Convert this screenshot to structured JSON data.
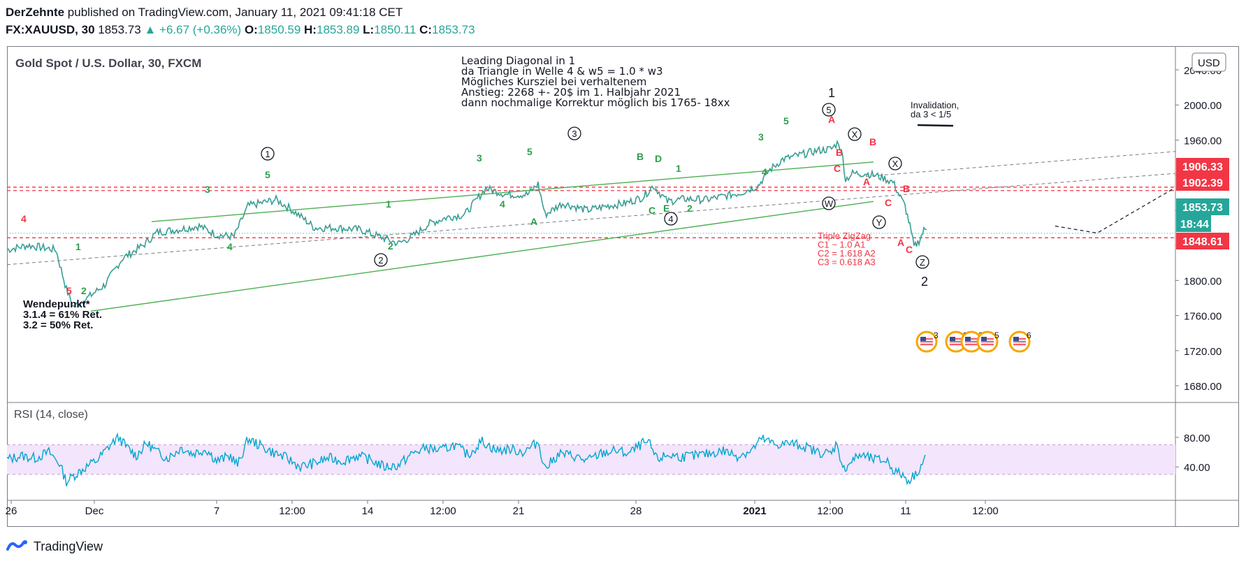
{
  "header": {
    "author": "DerZehnte",
    "published": " published on TradingView.com, January 11, 2021 09:41:18 CET",
    "symbol": "FX:XAUUSD, 30",
    "last": "1853.73",
    "change": "+6.67 (+0.36%)",
    "o_label": "O:",
    "o": "1850.59",
    "h_label": "H:",
    "h": "1853.89",
    "l_label": "L:",
    "l": "1850.11",
    "c_label": "C:",
    "c": "1853.73"
  },
  "footer": {
    "brand": "TradingView"
  },
  "chart_data": [
    {
      "type": "line",
      "title": "Gold Spot / U.S. Dollar, 30, FXCM",
      "currency_label": "USD",
      "x_tick_labels": [
        "26",
        "Dec",
        "7",
        "12:00",
        "14",
        "12:00",
        "21",
        "28",
        "2021",
        "12:00",
        "11",
        "12:00"
      ],
      "y_ticks": [
        1680,
        1720,
        1760,
        1800,
        1840,
        1880,
        1920,
        1960,
        2000,
        2040
      ],
      "y_tick_labels": [
        "1680.00",
        "1720.00",
        "1760.00",
        "1800.00",
        "1840.00",
        "1880.00",
        "1920.00",
        "1960.00",
        "2000.00",
        "2040.00"
      ],
      "ylim": [
        1666,
        2060
      ],
      "price_tags": [
        {
          "label": "1906.33",
          "value": 1906.33,
          "color": "#f23645"
        },
        {
          "label": "1902.39",
          "value": 1902.39,
          "color": "#f23645"
        },
        {
          "label": "1853.73",
          "value": 1853.73,
          "color": "#26a69a"
        },
        {
          "label": "18:44",
          "value": 1833,
          "color": "#26a69a"
        },
        {
          "label": "1848.61",
          "value": 1848.61,
          "color": "#f23645"
        }
      ],
      "horizontal_lines": [
        1906.33,
        1902.39,
        1848.61
      ],
      "series": [
        {
          "type": "candles-approx",
          "color": "#26a69a",
          "points": [
            [
              0,
              1835
            ],
            [
              30,
              1840
            ],
            [
              70,
              1835
            ],
            [
              85,
              1790
            ],
            [
              95,
              1770
            ],
            [
              115,
              1780
            ],
            [
              140,
              1795
            ],
            [
              165,
              1825
            ],
            [
              195,
              1840
            ],
            [
              215,
              1855
            ],
            [
              245,
              1858
            ],
            [
              275,
              1862
            ],
            [
              300,
              1852
            ],
            [
              325,
              1850
            ],
            [
              345,
              1885
            ],
            [
              385,
              1892
            ],
            [
              405,
              1882
            ],
            [
              425,
              1870
            ],
            [
              440,
              1860
            ],
            [
              470,
              1860
            ],
            [
              505,
              1858
            ],
            [
              540,
              1848
            ],
            [
              560,
              1842
            ],
            [
              580,
              1850
            ],
            [
              605,
              1865
            ],
            [
              630,
              1872
            ],
            [
              655,
              1875
            ],
            [
              685,
              1905
            ],
            [
              715,
              1898
            ],
            [
              745,
              1898
            ],
            [
              760,
              1910
            ],
            [
              770,
              1875
            ],
            [
              795,
              1888
            ],
            [
              830,
              1880
            ],
            [
              860,
              1885
            ],
            [
              885,
              1888
            ],
            [
              910,
              1895
            ],
            [
              925,
              1908
            ],
            [
              945,
              1890
            ],
            [
              970,
              1893
            ],
            [
              1000,
              1892
            ],
            [
              1020,
              1895
            ],
            [
              1050,
              1900
            ],
            [
              1075,
              1908
            ],
            [
              1090,
              1925
            ],
            [
              1110,
              1938
            ],
            [
              1130,
              1942
            ],
            [
              1160,
              1948
            ],
            [
              1180,
              1950
            ],
            [
              1190,
              1958
            ],
            [
              1196,
              1940
            ],
            [
              1200,
              1915
            ],
            [
              1210,
              1922
            ],
            [
              1230,
              1922
            ],
            [
              1250,
              1918
            ],
            [
              1268,
              1912
            ],
            [
              1275,
              1900
            ],
            [
              1285,
              1885
            ],
            [
              1292,
              1862
            ],
            [
              1298,
              1838
            ],
            [
              1305,
              1845
            ],
            [
              1312,
              1857
            ],
            [
              1316,
              1858
            ]
          ]
        }
      ],
      "annotation_text": [
        "Leading Diagonal in 1",
        "da Triangle in Welle 4 & w5 = 1.0 * w3",
        "Mögliches Kursziel bei verhaltenem",
        "Anstieg: 2268 +- 20$ im 1. Halbjahr 2021",
        "dann nochmalige Korrektur möglich bis 1765- 18xx"
      ],
      "wendepunkt_text": [
        "Wendepunkt*",
        "3.1.4 = 61% Ret.",
        "3.2 = 50% Ret."
      ],
      "invalidation_text": [
        "Invalidation,",
        "da 3 < 1/5"
      ],
      "triple_zigzag_text": [
        "Triple ZigZag",
        "C1 ~ 1.0 A1",
        "C2 = 1.618 A2",
        "C3 = 0.618 A3"
      ],
      "wave_labels": [
        {
          "t": "4",
          "c": "red"
        },
        {
          "t": "5",
          "c": "red"
        },
        {
          "t": "1",
          "c": "green"
        },
        {
          "t": "2",
          "c": "green"
        },
        {
          "t": "3",
          "c": "green"
        },
        {
          "t": "4",
          "c": "green"
        },
        {
          "t": "5",
          "c": "green"
        },
        {
          "t": "1",
          "c": "green"
        },
        {
          "t": "2",
          "c": "green"
        },
        {
          "t": "3",
          "c": "green"
        },
        {
          "t": "4",
          "c": "green"
        },
        {
          "t": "5",
          "c": "green"
        },
        {
          "t": "A",
          "c": "green"
        },
        {
          "t": "B",
          "c": "green"
        },
        {
          "t": "C",
          "c": "green"
        },
        {
          "t": "D",
          "c": "green"
        },
        {
          "t": "E",
          "c": "green"
        },
        {
          "t": "1",
          "c": "green"
        },
        {
          "t": "2",
          "c": "green"
        },
        {
          "t": "3",
          "c": "green"
        },
        {
          "t": "4",
          "c": "green"
        },
        {
          "t": "5",
          "c": "green"
        },
        {
          "t": "A",
          "c": "red"
        },
        {
          "t": "B",
          "c": "red"
        },
        {
          "t": "C",
          "c": "red"
        },
        {
          "t": "B",
          "c": "red"
        },
        {
          "t": "A",
          "c": "red"
        },
        {
          "t": "C",
          "c": "red"
        },
        {
          "t": "B",
          "c": "red"
        },
        {
          "t": "A",
          "c": "red"
        },
        {
          "t": "C",
          "c": "red"
        },
        {
          "t": "1",
          "c": "black"
        },
        {
          "t": "2",
          "c": "black"
        }
      ],
      "circled_labels": [
        "1",
        "2",
        "3",
        "4",
        "5",
        "X",
        "X",
        "W",
        "Y",
        "Z"
      ],
      "event_icon_counts": [
        "3",
        "2",
        "3",
        "5",
        "6"
      ]
    },
    {
      "type": "line",
      "title": "RSI (14, close)",
      "y_ticks": [
        40,
        80
      ],
      "y_tick_labels": [
        "40.00",
        "80.00"
      ],
      "ylim": [
        10,
        95
      ],
      "band": [
        30,
        70
      ],
      "color": "#00a5cf",
      "points": [
        [
          0,
          50
        ],
        [
          20,
          55
        ],
        [
          40,
          52
        ],
        [
          60,
          60
        ],
        [
          75,
          45
        ],
        [
          85,
          20
        ],
        [
          95,
          28
        ],
        [
          110,
          38
        ],
        [
          130,
          50
        ],
        [
          150,
          72
        ],
        [
          160,
          80
        ],
        [
          170,
          68
        ],
        [
          185,
          55
        ],
        [
          200,
          72
        ],
        [
          215,
          60
        ],
        [
          230,
          52
        ],
        [
          250,
          66
        ],
        [
          265,
          58
        ],
        [
          285,
          64
        ],
        [
          300,
          48
        ],
        [
          320,
          55
        ],
        [
          330,
          42
        ],
        [
          345,
          78
        ],
        [
          360,
          70
        ],
        [
          380,
          60
        ],
        [
          400,
          52
        ],
        [
          420,
          40
        ],
        [
          440,
          45
        ],
        [
          460,
          52
        ],
        [
          480,
          48
        ],
        [
          500,
          55
        ],
        [
          520,
          50
        ],
        [
          540,
          40
        ],
        [
          560,
          42
        ],
        [
          580,
          58
        ],
        [
          600,
          66
        ],
        [
          620,
          62
        ],
        [
          640,
          70
        ],
        [
          660,
          56
        ],
        [
          680,
          75
        ],
        [
          700,
          62
        ],
        [
          720,
          64
        ],
        [
          740,
          60
        ],
        [
          760,
          74
        ],
        [
          770,
          38
        ],
        [
          790,
          58
        ],
        [
          810,
          55
        ],
        [
          830,
          48
        ],
        [
          850,
          58
        ],
        [
          870,
          62
        ],
        [
          890,
          58
        ],
        [
          910,
          72
        ],
        [
          920,
          70
        ],
        [
          930,
          50
        ],
        [
          945,
          56
        ],
        [
          965,
          54
        ],
        [
          985,
          55
        ],
        [
          1005,
          58
        ],
        [
          1025,
          62
        ],
        [
          1045,
          55
        ],
        [
          1065,
          62
        ],
        [
          1080,
          78
        ],
        [
          1100,
          70
        ],
        [
          1120,
          72
        ],
        [
          1140,
          68
        ],
        [
          1160,
          60
        ],
        [
          1180,
          58
        ],
        [
          1188,
          74
        ],
        [
          1196,
          35
        ],
        [
          1205,
          45
        ],
        [
          1220,
          56
        ],
        [
          1240,
          50
        ],
        [
          1260,
          48
        ],
        [
          1270,
          34
        ],
        [
          1280,
          30
        ],
        [
          1290,
          22
        ],
        [
          1300,
          30
        ],
        [
          1310,
          45
        ],
        [
          1316,
          58
        ]
      ]
    }
  ]
}
